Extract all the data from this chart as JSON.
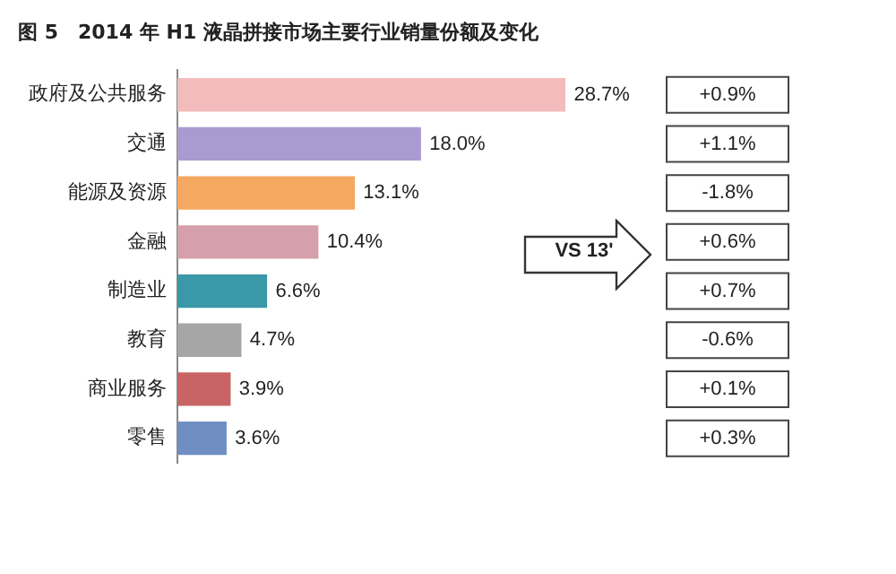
{
  "chart_data": {
    "type": "bar",
    "orientation": "horizontal",
    "title": "图 5　2014 年 H1 液晶拼接市场主要行业销量份额及变化",
    "categories": [
      "政府及公共服务",
      "交通",
      "能源及资源",
      "金融",
      "制造业",
      "教育",
      "商业服务",
      "零售"
    ],
    "values": [
      28.7,
      18.0,
      13.1,
      10.4,
      6.6,
      4.7,
      3.9,
      3.6
    ],
    "value_labels": [
      "28.7%",
      "18.0%",
      "13.1%",
      "10.4%",
      "6.6%",
      "4.7%",
      "3.9%",
      "3.6%"
    ],
    "colors": [
      "#f2bcbc",
      "#a99bd2",
      "#f5a860",
      "#d6a0aa",
      "#3a98a8",
      "#a6a6a6",
      "#c86464",
      "#6f8fc2"
    ],
    "grid": false,
    "legend": false,
    "tick_labels": "y",
    "annotations": [
      "VS 13'",
      "+0.9%",
      "+1.1%",
      "-1.8%",
      "+0.6%",
      "+0.7%",
      "-0.6%",
      "+0.1%",
      "+0.3%"
    ]
  }
}
